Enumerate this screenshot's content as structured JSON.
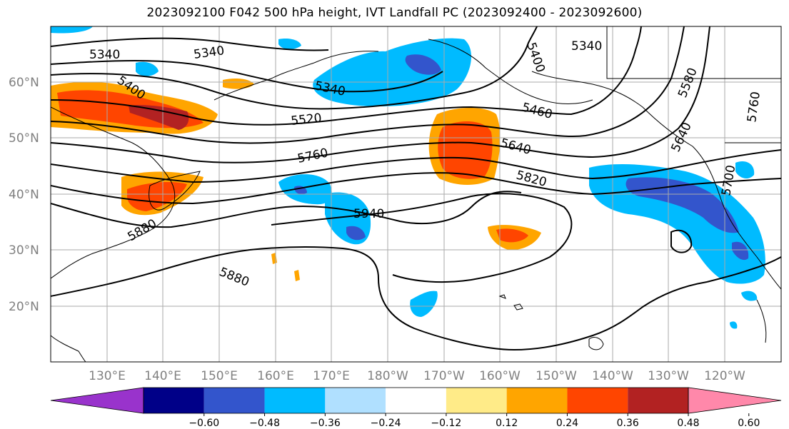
{
  "title": "2023092100 F042 500 hPa height, IVT Landfall PC (2023092400 - 2023092600)",
  "lat_labels": [
    "60°N",
    "50°N",
    "40°N",
    "30°N",
    "20°N"
  ],
  "lon_labels": [
    "130°E",
    "140°E",
    "150°E",
    "160°E",
    "170°E",
    "180°W",
    "170°W",
    "160°W",
    "150°W",
    "140°W",
    "130°W",
    "120°W"
  ],
  "contour_labels": [
    "5340",
    "5340",
    "5340",
    "5340",
    "5400",
    "5400",
    "5460",
    "5520",
    "5580",
    "5640",
    "5700",
    "5760",
    "5760",
    "5820",
    "5880",
    "5880",
    "5940",
    "5640"
  ],
  "colorbar": {
    "ticks": [
      "−0.60",
      "−0.48",
      "−0.36",
      "−0.24",
      "−0.12",
      "0.12",
      "0.24",
      "0.36",
      "0.48",
      "0.60"
    ],
    "colors": [
      "#9933cc",
      "#000088",
      "#3355cc",
      "#00bbff",
      "#b0e0ff",
      "#ffffff",
      "#ffeb88",
      "#ffa500",
      "#ff4500",
      "#b22222",
      "#ff88aa"
    ]
  },
  "fill_colors": {
    "neg_light": "#b0e0ff",
    "neg_cyan": "#00bbff",
    "neg_blue": "#3355cc",
    "neg_navy": "#000088",
    "pos_yellow": "#ffeb88",
    "pos_orange": "#ffa500",
    "pos_red": "#ff4500",
    "pos_dark": "#b22222"
  }
}
